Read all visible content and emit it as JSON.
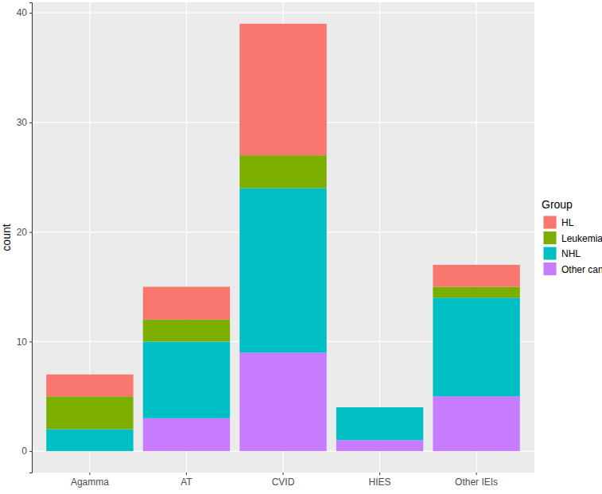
{
  "chart_data": {
    "type": "bar",
    "stacked": true,
    "grid": true,
    "y_label": "count",
    "legend_title": "Group",
    "legend": "right",
    "categories": [
      "Agamma",
      "AT",
      "CVID",
      "HIES",
      "Other IEIs"
    ],
    "series": [
      {
        "name": "HL",
        "color": "#F8766D",
        "values": [
          2,
          3,
          12,
          0,
          2
        ]
      },
      {
        "name": "Leukemia",
        "color": "#7CAE00",
        "values": [
          3,
          2,
          3,
          0,
          1
        ]
      },
      {
        "name": "NHL",
        "color": "#00BFC4",
        "values": [
          2,
          7,
          15,
          3,
          9
        ]
      },
      {
        "name": "Other cancers",
        "color": "#C77CFF",
        "values": [
          0,
          3,
          9,
          1,
          5
        ]
      }
    ],
    "ylim": [
      -1.95,
      40.95
    ],
    "yticks": [
      0,
      10,
      20,
      30,
      40
    ]
  }
}
